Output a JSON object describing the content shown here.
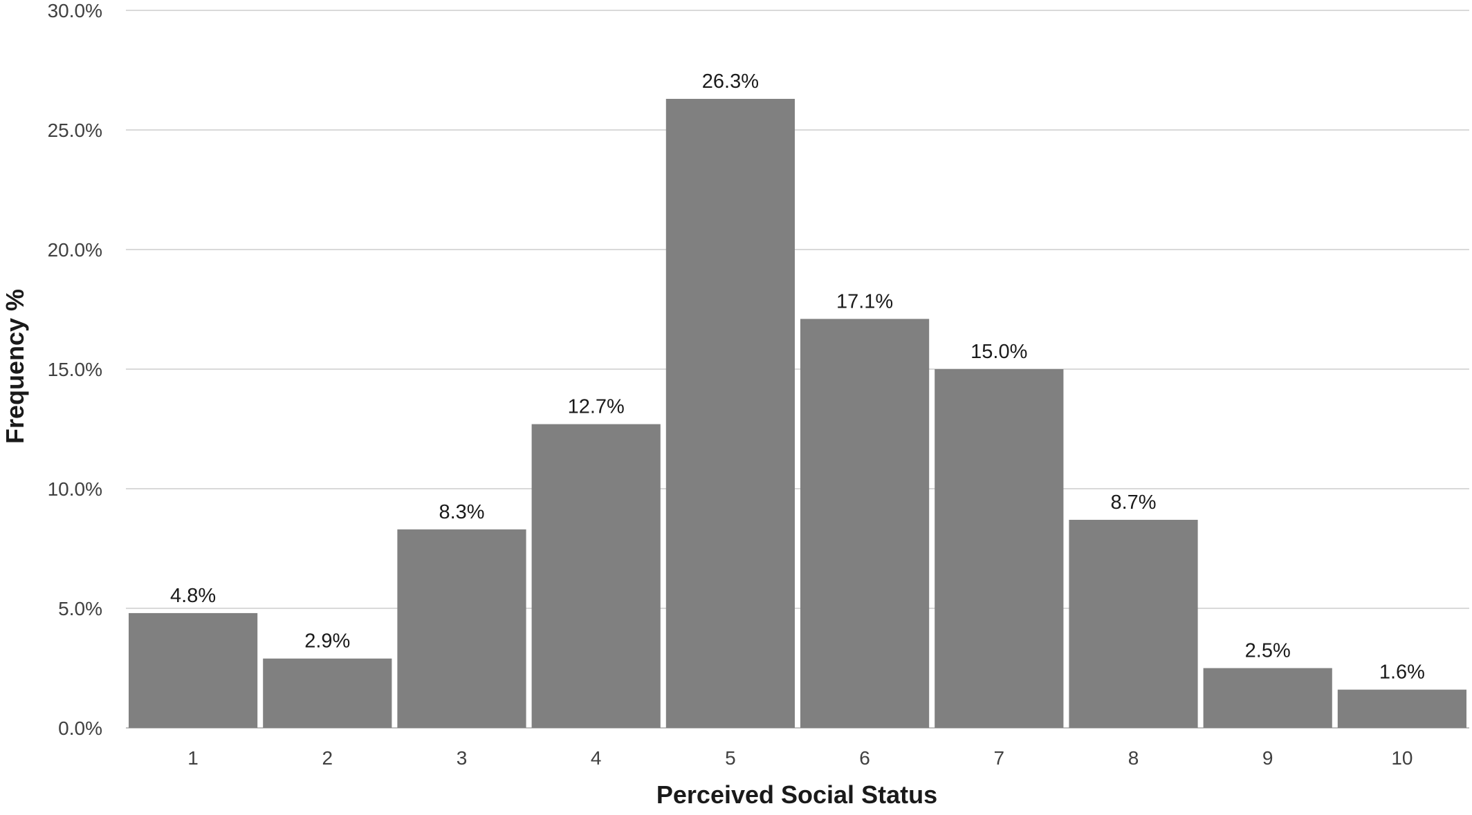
{
  "chart_data": {
    "type": "bar",
    "title": "",
    "xlabel": "Perceived Social Status",
    "ylabel": "Frequency %",
    "categories": [
      "1",
      "2",
      "3",
      "4",
      "5",
      "6",
      "7",
      "8",
      "9",
      "10"
    ],
    "values": [
      4.8,
      2.9,
      8.3,
      12.7,
      26.3,
      17.1,
      15.0,
      8.7,
      2.5,
      1.6
    ],
    "data_labels": [
      "4.8%",
      "2.9%",
      "8.3%",
      "12.7%",
      "26.3%",
      "17.1%",
      "15.0%",
      "8.7%",
      "2.5%",
      "1.6%"
    ],
    "ylim": [
      0,
      30
    ],
    "yticks": [
      0,
      5,
      10,
      15,
      20,
      25,
      30
    ],
    "ytick_labels": [
      "0.0%",
      "5.0%",
      "10.0%",
      "15.0%",
      "20.0%",
      "25.0%",
      "30.0%"
    ],
    "grid": true,
    "legend": "none",
    "colors": {
      "bar": "#808080",
      "gridline": "#d9d9d9",
      "text": "#404040"
    }
  }
}
